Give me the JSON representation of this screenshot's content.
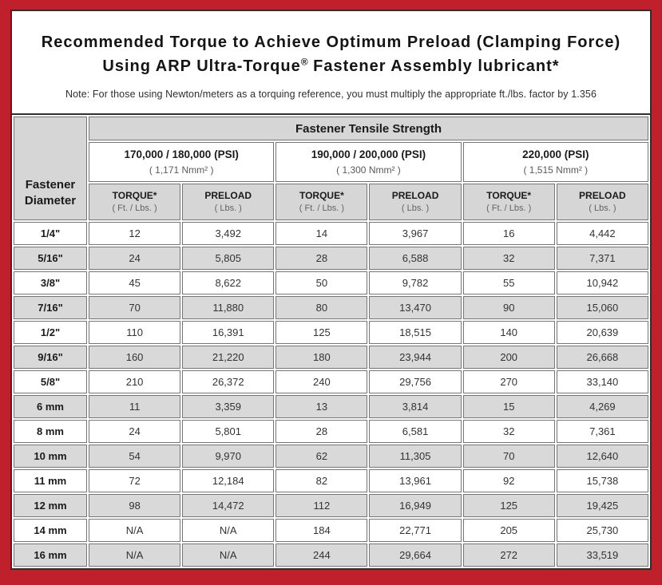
{
  "header": {
    "title_line1": "Recommended Torque to Achieve Optimum Preload (Clamping Force)",
    "title_line2_pre": "Using ARP Ultra-Torque",
    "title_line2_sup": "®",
    "title_line2_post": " Fastener Assembly lubricant*",
    "note": "Note: For those using Newton/meters as a torquing reference, you must multiply the appropriate ft./lbs. factor by 1.356"
  },
  "table": {
    "corner_line1": "Fastener",
    "corner_line2": "Diameter",
    "tensile_header": "Fastener Tensile Strength",
    "groups": [
      {
        "psi": "170,000 / 180,000 (PSI)",
        "nmm": "( 1,171 Nmm² )"
      },
      {
        "psi": "190,000 / 200,000 (PSI)",
        "nmm": "( 1,300 Nmm² )"
      },
      {
        "psi": "220,000 (PSI)",
        "nmm": "( 1,515 Nmm² )"
      }
    ],
    "columns": [
      {
        "label": "TORQUE*",
        "unit": "( Ft. / Lbs. )"
      },
      {
        "label": "PRELOAD",
        "unit": "( Lbs. )"
      },
      {
        "label": "TORQUE*",
        "unit": "( Ft. / Lbs. )"
      },
      {
        "label": "PRELOAD",
        "unit": "( Lbs. )"
      },
      {
        "label": "TORQUE*",
        "unit": "( Ft. / Lbs. )"
      },
      {
        "label": "PRELOAD",
        "unit": "( Lbs. )"
      }
    ],
    "rows": [
      {
        "diameter": "1/4\"",
        "values": [
          "12",
          "3,492",
          "14",
          "3,967",
          "16",
          "4,442"
        ]
      },
      {
        "diameter": "5/16\"",
        "values": [
          "24",
          "5,805",
          "28",
          "6,588",
          "32",
          "7,371"
        ]
      },
      {
        "diameter": "3/8\"",
        "values": [
          "45",
          "8,622",
          "50",
          "9,782",
          "55",
          "10,942"
        ]
      },
      {
        "diameter": "7/16\"",
        "values": [
          "70",
          "11,880",
          "80",
          "13,470",
          "90",
          "15,060"
        ]
      },
      {
        "diameter": "1/2\"",
        "values": [
          "110",
          "16,391",
          "125",
          "18,515",
          "140",
          "20,639"
        ]
      },
      {
        "diameter": "9/16\"",
        "values": [
          "160",
          "21,220",
          "180",
          "23,944",
          "200",
          "26,668"
        ]
      },
      {
        "diameter": "5/8\"",
        "values": [
          "210",
          "26,372",
          "240",
          "29,756",
          "270",
          "33,140"
        ]
      },
      {
        "diameter": "6 mm",
        "values": [
          "11",
          "3,359",
          "13",
          "3,814",
          "15",
          "4,269"
        ]
      },
      {
        "diameter": "8 mm",
        "values": [
          "24",
          "5,801",
          "28",
          "6,581",
          "32",
          "7,361"
        ]
      },
      {
        "diameter": "10 mm",
        "values": [
          "54",
          "9,970",
          "62",
          "11,305",
          "70",
          "12,640"
        ]
      },
      {
        "diameter": "11 mm",
        "values": [
          "72",
          "12,184",
          "82",
          "13,961",
          "92",
          "15,738"
        ]
      },
      {
        "diameter": "12 mm",
        "values": [
          "98",
          "14,472",
          "112",
          "16,949",
          "125",
          "19,425"
        ]
      },
      {
        "diameter": "14 mm",
        "values": [
          "N/A",
          "N/A",
          "184",
          "22,771",
          "205",
          "25,730"
        ]
      },
      {
        "diameter": "16 mm",
        "values": [
          "N/A",
          "N/A",
          "244",
          "29,664",
          "272",
          "33,519"
        ]
      }
    ]
  },
  "colors": {
    "frame_red": "#c0202c",
    "panel_border": "#2f2f2f",
    "header_gray": "#d6d6d6",
    "alt_row_gray": "#d9d9d9",
    "cell_border": "#757575"
  }
}
